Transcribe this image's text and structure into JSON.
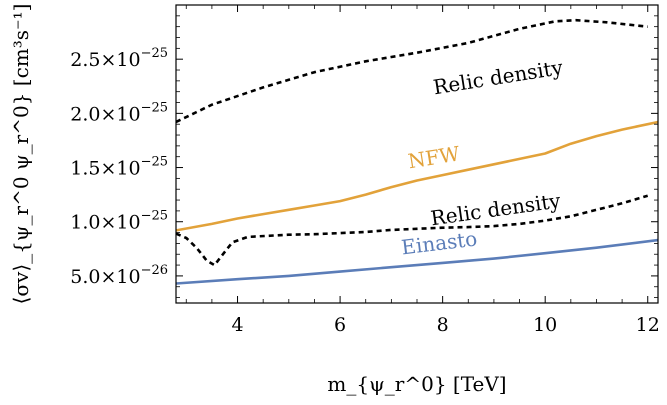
{
  "chart_data": {
    "type": "line",
    "xlabel": "m_{ψ_r^0} [TeV]",
    "ylabel": "⟨σv⟩_{ψ_r^0 ψ_r^0} [cm³s⁻¹]",
    "xlim": [
      2.8,
      12.2
    ],
    "ylim": [
      2.5e-26,
      3e-25
    ],
    "grid": false,
    "legend": "none",
    "x_ticks": [
      {
        "value": 4,
        "label": "4"
      },
      {
        "value": 6,
        "label": "6"
      },
      {
        "value": 8,
        "label": "8"
      },
      {
        "value": 10,
        "label": "10"
      },
      {
        "value": 12,
        "label": "12"
      }
    ],
    "y_ticks": [
      {
        "value": 5e-26,
        "mantissa": "5.0",
        "exponent": "−26"
      },
      {
        "value": 1e-25,
        "mantissa": "1.0",
        "exponent": "−25"
      },
      {
        "value": 1.5e-25,
        "mantissa": "1.5",
        "exponent": "−25"
      },
      {
        "value": 2e-25,
        "mantissa": "2.0",
        "exponent": "−25"
      },
      {
        "value": 2.5e-25,
        "mantissa": "2.5",
        "exponent": "−25"
      }
    ],
    "series": [
      {
        "name": "Relic density",
        "color": "#000000",
        "dashed": true,
        "x": [
          2.8,
          3.5,
          4.5,
          5.5,
          6.5,
          7.5,
          8.5,
          9.5,
          10.2,
          10.6,
          11.2,
          12.0
        ],
        "values": [
          1.92e-25,
          2.08e-25,
          2.24e-25,
          2.38e-25,
          2.48e-25,
          2.56e-25,
          2.65e-25,
          2.78e-25,
          2.85e-25,
          2.86e-25,
          2.84e-25,
          2.8e-25
        ]
      },
      {
        "name": "NFW",
        "color": "#E2A23A",
        "dashed": false,
        "x": [
          2.8,
          3.5,
          4.0,
          4.5,
          5.0,
          5.5,
          6.0,
          6.5,
          7.0,
          7.5,
          8.0,
          8.5,
          9.0,
          9.5,
          10.0,
          10.5,
          11.0,
          11.5,
          12.2
        ],
        "values": [
          9.2e-26,
          9.8e-26,
          1.03e-25,
          1.07e-25,
          1.11e-25,
          1.15e-25,
          1.19e-25,
          1.25e-25,
          1.32e-25,
          1.38e-25,
          1.43e-25,
          1.48e-25,
          1.53e-25,
          1.58e-25,
          1.63e-25,
          1.72e-25,
          1.79e-25,
          1.85e-25,
          1.92e-25
        ]
      },
      {
        "name": "Relic density",
        "color": "#000000",
        "dashed": true,
        "x": [
          2.8,
          3.0,
          3.2,
          3.4,
          3.55,
          3.7,
          3.9,
          4.2,
          4.6,
          5.0,
          5.5,
          6.0,
          6.5,
          7.0,
          7.5,
          8.0,
          8.5,
          9.0,
          9.5,
          10.0,
          10.5,
          11.0,
          11.5,
          12.0
        ],
        "values": [
          8.9e-26,
          8.5e-26,
          7.6e-26,
          6.4e-26,
          6e-26,
          6.9e-26,
          8.1e-26,
          8.6e-26,
          8.7e-26,
          8.8e-26,
          8.85e-26,
          8.95e-26,
          9.05e-26,
          9.25e-26,
          9.35e-26,
          9.45e-26,
          9.5e-26,
          9.6e-26,
          9.8e-26,
          1.01e-25,
          1.05e-25,
          1.11e-25,
          1.17e-25,
          1.24e-25
        ]
      },
      {
        "name": "Einasto",
        "color": "#5B7DB8",
        "dashed": false,
        "x": [
          2.8,
          4.0,
          5.0,
          6.0,
          7.0,
          8.0,
          9.0,
          10.0,
          11.0,
          12.2
        ],
        "values": [
          4.3e-26,
          4.7e-26,
          5e-26,
          5.4e-26,
          5.8e-26,
          6.2e-26,
          6.6e-26,
          7.1e-26,
          7.6e-26,
          8.3e-26
        ]
      }
    ],
    "annotations": [
      {
        "text": "Relic density",
        "x": 9.1,
        "y": 2.27e-25,
        "color": "#000000",
        "rotate": -9
      },
      {
        "text": "NFW",
        "x": 7.85,
        "y": 1.53e-25,
        "color": "#E2A23A",
        "rotate": -9
      },
      {
        "text": "Relic density",
        "x": 9.05,
        "y": 1.05e-25,
        "color": "#000000",
        "rotate": -8
      },
      {
        "text": "Einasto",
        "x": 7.95,
        "y": 7.4e-26,
        "color": "#5B7DB8",
        "rotate": -7
      }
    ]
  }
}
